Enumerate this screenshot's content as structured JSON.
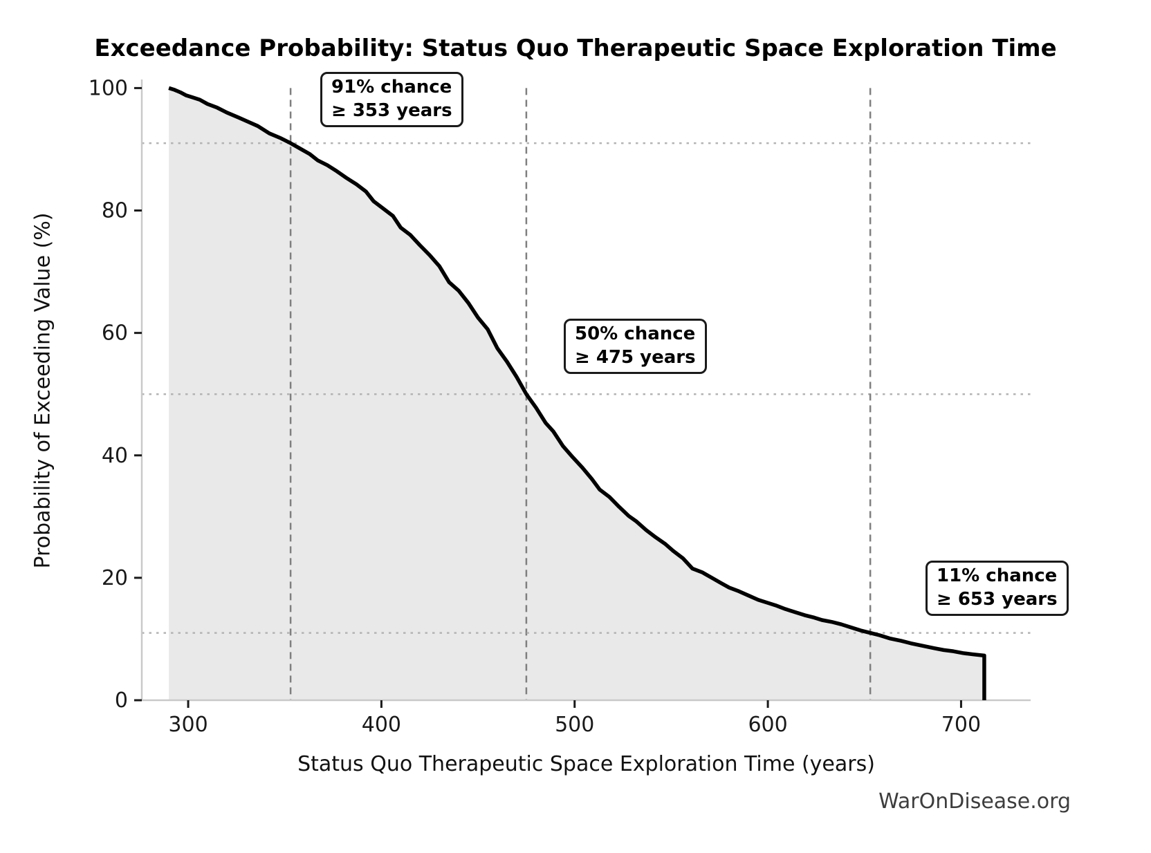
{
  "page": {
    "watermark": "WarOnDisease.org"
  },
  "chart_data": {
    "type": "line",
    "title": "Exceedance Probability: Status Quo Therapeutic Space Exploration Time",
    "xlabel": "Status Quo Therapeutic Space Exploration Time (years)",
    "ylabel": "Probability of Exceeding Value (%)",
    "xlim": [
      276,
      736
    ],
    "ylim": [
      0,
      101.4
    ],
    "xtick_values": [
      300,
      400,
      500,
      600,
      700
    ],
    "xtick_labels": [
      "300",
      "400",
      "500",
      "600",
      "700"
    ],
    "ytick_values": [
      0,
      20,
      40,
      60,
      80,
      100
    ],
    "ytick_labels": [
      "0",
      "20",
      "40",
      "60",
      "80",
      "100"
    ],
    "grid": "off",
    "legend": "none",
    "line_color": "#000000",
    "fill_under_curve": true,
    "fill_color": "#e9e9e9",
    "spine_color": "#c9c9c9",
    "vline_color": "#7f7f7f",
    "hline_color": "#b3b3b3",
    "curve_end": {
      "x": 712,
      "y_before_drop": 7.3,
      "drops_to": 0
    },
    "points": [
      [
        290,
        100
      ],
      [
        293,
        99.7
      ],
      [
        296,
        99.3
      ],
      [
        299,
        98.8
      ],
      [
        302,
        98.5
      ],
      [
        306,
        98.1
      ],
      [
        310,
        97.4
      ],
      [
        315,
        96.8
      ],
      [
        320,
        96.0
      ],
      [
        326,
        95.2
      ],
      [
        331,
        94.5
      ],
      [
        336,
        93.8
      ],
      [
        342,
        92.6
      ],
      [
        348,
        91.8
      ],
      [
        353,
        91
      ],
      [
        358,
        90.1
      ],
      [
        363,
        89.2
      ],
      [
        367,
        88.2
      ],
      [
        372,
        87.4
      ],
      [
        377,
        86.4
      ],
      [
        382,
        85.3
      ],
      [
        387,
        84.3
      ],
      [
        392,
        83.1
      ],
      [
        396,
        81.5
      ],
      [
        401,
        80.3
      ],
      [
        406,
        79.1
      ],
      [
        410,
        77.2
      ],
      [
        415,
        76.0
      ],
      [
        420,
        74.3
      ],
      [
        425,
        72.7
      ],
      [
        430,
        70.9
      ],
      [
        435,
        68.3
      ],
      [
        440,
        66.9
      ],
      [
        445,
        64.9
      ],
      [
        450,
        62.5
      ],
      [
        455,
        60.6
      ],
      [
        460,
        57.5
      ],
      [
        465,
        55.3
      ],
      [
        470,
        52.8
      ],
      [
        475,
        50
      ],
      [
        480,
        47.8
      ],
      [
        485,
        45.3
      ],
      [
        489,
        43.9
      ],
      [
        494,
        41.5
      ],
      [
        499,
        39.7
      ],
      [
        504,
        38.0
      ],
      [
        509,
        36.1
      ],
      [
        513,
        34.4
      ],
      [
        518,
        33.2
      ],
      [
        523,
        31.6
      ],
      [
        528,
        30.1
      ],
      [
        532,
        29.2
      ],
      [
        537,
        27.8
      ],
      [
        542,
        26.6
      ],
      [
        547,
        25.5
      ],
      [
        551,
        24.4
      ],
      [
        556,
        23.2
      ],
      [
        561,
        21.5
      ],
      [
        566,
        20.9
      ],
      [
        571,
        20.0
      ],
      [
        576,
        19.1
      ],
      [
        580,
        18.4
      ],
      [
        585,
        17.8
      ],
      [
        590,
        17.1
      ],
      [
        595,
        16.4
      ],
      [
        600,
        15.9
      ],
      [
        604,
        15.5
      ],
      [
        609,
        14.9
      ],
      [
        614,
        14.4
      ],
      [
        619,
        13.9
      ],
      [
        624,
        13.5
      ],
      [
        628,
        13.1
      ],
      [
        633,
        12.8
      ],
      [
        638,
        12.4
      ],
      [
        643,
        11.9
      ],
      [
        648,
        11.4
      ],
      [
        653,
        11
      ],
      [
        658,
        10.6
      ],
      [
        663,
        10.1
      ],
      [
        669,
        9.7
      ],
      [
        674,
        9.3
      ],
      [
        680,
        8.9
      ],
      [
        686,
        8.5
      ],
      [
        691,
        8.2
      ],
      [
        696,
        8.0
      ],
      [
        701,
        7.7
      ],
      [
        706,
        7.5
      ],
      [
        712,
        7.3
      ]
    ],
    "markers": [
      {
        "x": 353,
        "y": 91,
        "lines": [
          "91% chance",
          "≥ 353 years"
        ]
      },
      {
        "x": 475,
        "y": 50,
        "lines": [
          "50% chance",
          "≥ 475 years"
        ]
      },
      {
        "x": 653,
        "y": 11,
        "lines": [
          "11% chance",
          "≥ 653 years"
        ]
      }
    ]
  }
}
